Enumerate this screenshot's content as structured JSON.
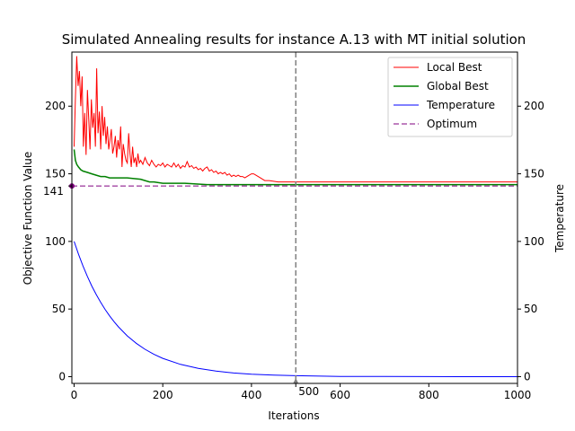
{
  "chart_data": {
    "type": "line",
    "title": "Simulated Annealing results for instance A.13 with MT initial solution",
    "xlabel": "Iterations",
    "ylabel": "Objective Function Value",
    "y2label": "Temperature",
    "xlim": [
      -5,
      1000
    ],
    "ylim": [
      -5,
      240
    ],
    "y2lim": [
      -5,
      240
    ],
    "x_ticks": [
      "0",
      "200",
      "400",
      "500",
      "600",
      "800",
      "1000"
    ],
    "y_ticks": [
      "0",
      "50",
      "100",
      "141",
      "150",
      "200"
    ],
    "y2_ticks": [
      "0",
      "50",
      "100",
      "150",
      "200"
    ],
    "vline_x": 500,
    "optimum": 141,
    "legend_position": "top-right",
    "grid": false,
    "series": [
      {
        "name": "Local Best",
        "color": "#ff0000",
        "style": "solid",
        "x": [
          0,
          3,
          6,
          9,
          12,
          15,
          18,
          21,
          24,
          27,
          30,
          33,
          36,
          39,
          42,
          45,
          48,
          51,
          54,
          57,
          60,
          63,
          66,
          69,
          72,
          75,
          78,
          81,
          84,
          87,
          90,
          93,
          96,
          99,
          102,
          105,
          108,
          111,
          114,
          117,
          120,
          123,
          126,
          129,
          132,
          135,
          138,
          141,
          144,
          147,
          150,
          155,
          160,
          165,
          170,
          175,
          180,
          185,
          190,
          195,
          200,
          205,
          210,
          215,
          220,
          225,
          230,
          235,
          240,
          245,
          250,
          255,
          260,
          265,
          270,
          275,
          280,
          285,
          290,
          295,
          300,
          305,
          310,
          315,
          320,
          325,
          330,
          335,
          340,
          345,
          350,
          355,
          360,
          365,
          370,
          375,
          380,
          385,
          390,
          395,
          400,
          405,
          410,
          415,
          420,
          425,
          430,
          440,
          460,
          500,
          600,
          700,
          800,
          900,
          1000
        ],
        "values": [
          170,
          205,
          237,
          215,
          226,
          200,
          222,
          170,
          195,
          164,
          212,
          190,
          168,
          205,
          184,
          195,
          170,
          228,
          180,
          196,
          168,
          200,
          178,
          192,
          172,
          185,
          168,
          175,
          183,
          165,
          170,
          178,
          162,
          175,
          168,
          185,
          155,
          172,
          165,
          160,
          158,
          180,
          165,
          155,
          170,
          158,
          162,
          155,
          165,
          158,
          160,
          157,
          162,
          158,
          156,
          160,
          157,
          155,
          157,
          156,
          158,
          155,
          157,
          156,
          155,
          158,
          155,
          157,
          154,
          156,
          155,
          159,
          155,
          156,
          154,
          155,
          153,
          154,
          152,
          154,
          155,
          152,
          153,
          151,
          152,
          150,
          151,
          150,
          151,
          149,
          150,
          148,
          149,
          148,
          149,
          148,
          148,
          147,
          148,
          149,
          150,
          150,
          149,
          148,
          147,
          146,
          145,
          145,
          144,
          144,
          144,
          144,
          144,
          144,
          144
        ]
      },
      {
        "name": "Global Best",
        "color": "#008000",
        "style": "solid",
        "x": [
          0,
          3,
          6,
          10,
          15,
          20,
          30,
          40,
          50,
          60,
          70,
          80,
          100,
          120,
          150,
          160,
          170,
          180,
          200,
          250,
          300,
          350,
          400,
          500,
          600,
          700,
          800,
          900,
          1000
        ],
        "values": [
          168,
          160,
          157,
          155,
          153,
          152,
          151,
          150,
          149,
          148,
          148,
          147,
          147,
          147,
          146,
          145,
          144,
          144,
          143,
          143,
          142,
          142,
          142,
          142,
          142,
          142,
          142,
          142,
          142
        ]
      },
      {
        "name": "Temperature",
        "color": "#0000ff",
        "style": "solid",
        "axis": "right",
        "x": [
          0,
          10,
          20,
          30,
          40,
          50,
          60,
          70,
          80,
          90,
          100,
          120,
          140,
          160,
          180,
          200,
          240,
          280,
          320,
          360,
          400,
          450,
          500,
          600,
          700,
          800,
          900,
          1000
        ],
        "values": [
          100,
          90.5,
          81.9,
          74.1,
          67.0,
          60.7,
          54.9,
          49.7,
          44.9,
          40.7,
          36.8,
          30.1,
          24.7,
          20.2,
          16.5,
          13.5,
          9.1,
          6.1,
          4.1,
          2.7,
          1.8,
          1.1,
          0.7,
          0.2,
          0.1,
          0.03,
          0.01,
          0.0
        ]
      },
      {
        "name": "Optimum",
        "color": "#800080",
        "style": "dashed",
        "x": [
          -5,
          1000
        ],
        "values": [
          141,
          141
        ]
      }
    ]
  }
}
